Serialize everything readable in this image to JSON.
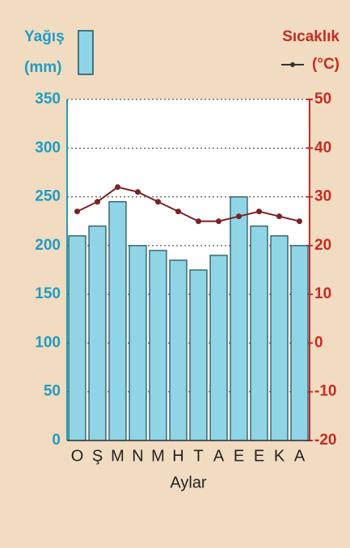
{
  "chart_data": {
    "type": "bar_line",
    "categories": [
      "O",
      "Ş",
      "M",
      "N",
      "M",
      "H",
      "T",
      "A",
      "E",
      "E",
      "K",
      "A"
    ],
    "series": [
      {
        "name": "Yağış",
        "color": "#8fd5e6",
        "values": [
          210,
          220,
          245,
          200,
          195,
          185,
          175,
          190,
          250,
          220,
          210,
          200
        ]
      },
      {
        "name": "Sıcaklık",
        "color": "#7a2323",
        "axis": "y2",
        "values": [
          27,
          29,
          32,
          31,
          29,
          27,
          25,
          25,
          26,
          27,
          26,
          25
        ]
      }
    ],
    "y_label": "(mm)",
    "y2_label": "(°C)",
    "x_label": "Aylar",
    "ylim": [
      0,
      350
    ],
    "yticks": [
      0,
      50,
      100,
      150,
      200,
      250,
      300,
      350
    ],
    "y2lim": [
      -20,
      50
    ],
    "y2ticks": [
      -20,
      -10,
      0,
      10,
      20,
      30,
      40,
      50
    ],
    "grid": true
  }
}
